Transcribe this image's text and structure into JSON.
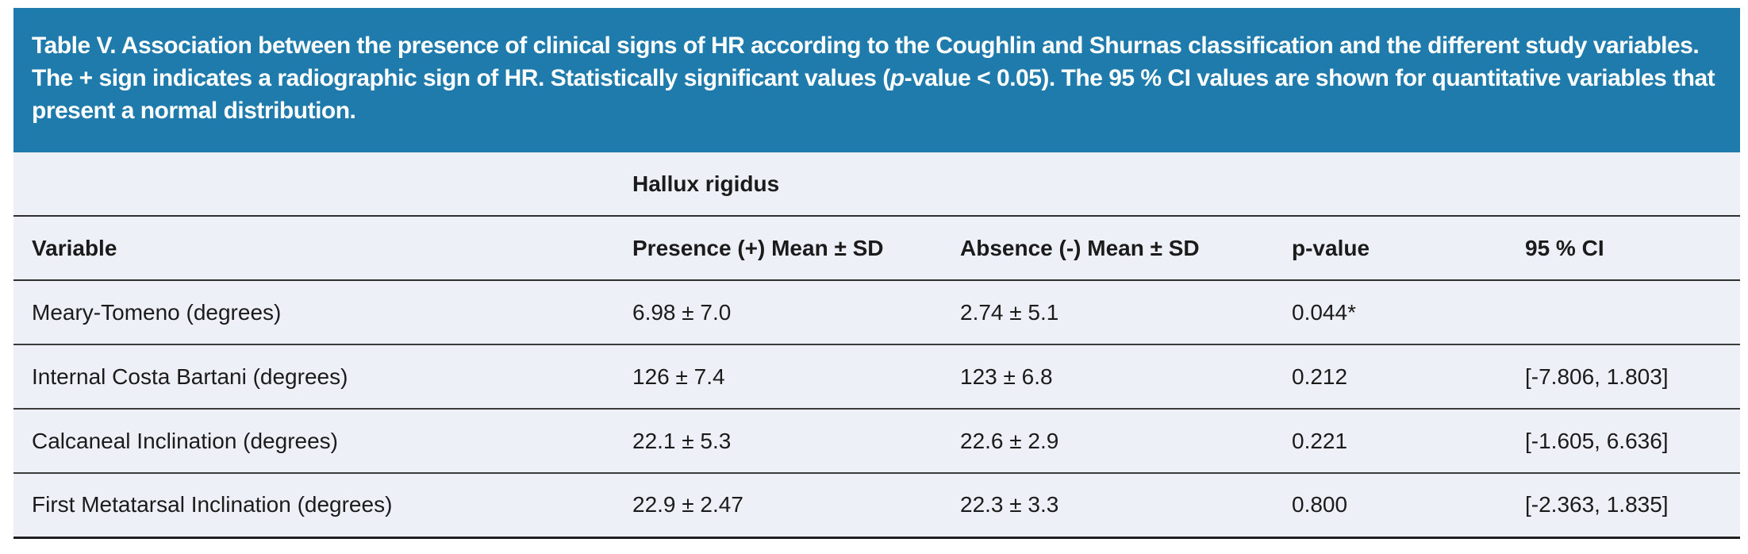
{
  "caption": {
    "text_before_italic": "Table V. Association between the presence of clinical signs of HR according to the Coughlin and Shurnas classification and the different study variables. The + sign indicates a radiographic sign of HR. Statistically significant values (",
    "italic_text": "p",
    "text_after_italic": "-value < 0.05). The 95 % CI values are shown for quantitative variables that present a normal distribution."
  },
  "table": {
    "group_header": "Hallux rigidus",
    "columns": [
      "Variable",
      "Presence (+) Mean ± SD",
      "Absence (-) Mean ± SD",
      "p-value",
      "95 % CI"
    ],
    "rows": [
      {
        "variable": "Meary-Tomeno (degrees)",
        "presence": "6.98 ± 7.0",
        "absence": "2.74 ± 5.1",
        "p_value": "0.044*",
        "ci": ""
      },
      {
        "variable": "Internal Costa Bartani (degrees)",
        "presence": "126 ± 7.4",
        "absence": "123 ± 6.8",
        "p_value": "0.212",
        "ci": "[-7.806, 1.803]"
      },
      {
        "variable": "Calcaneal Inclination (degrees)",
        "presence": "22.1 ± 5.3",
        "absence": "22.6 ± 2.9",
        "p_value": "0.221",
        "ci": "[-1.605, 6.636]"
      },
      {
        "variable": "First Metatarsal Inclination (degrees)",
        "presence": "22.9 ± 2.47",
        "absence": "22.3 ± 3.3",
        "p_value": "0.800",
        "ci": "[-2.363, 1.835]"
      }
    ]
  },
  "colors": {
    "banner_bg": "#1e7bab",
    "banner_text": "#ffffff",
    "table_bg": "#edf1f7",
    "rule": "#3c3c3c",
    "text": "#1b1b1b"
  }
}
